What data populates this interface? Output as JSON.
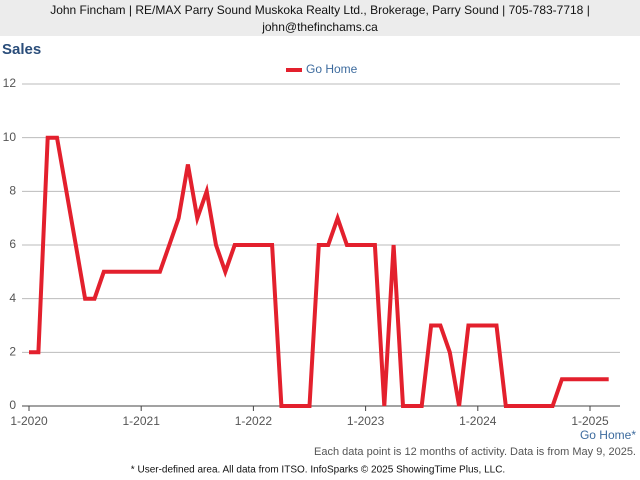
{
  "header": {
    "text": "John Fincham | RE/MAX Parry Sound Muskoka Realty Ltd., Brokerage, Parry Sound | 705-783-7718 | john@thefinchams.ca"
  },
  "chart_data": {
    "type": "line",
    "title": "Sales",
    "categories": [
      "1-2020",
      null,
      null,
      null,
      null,
      null,
      null,
      null,
      null,
      null,
      null,
      null,
      "1-2021",
      null,
      null,
      null,
      null,
      null,
      null,
      null,
      null,
      null,
      null,
      null,
      "1-2022",
      null,
      null,
      null,
      null,
      null,
      null,
      null,
      null,
      null,
      null,
      null,
      "1-2023",
      null,
      null,
      null,
      null,
      null,
      null,
      null,
      null,
      null,
      null,
      null,
      "1-2024",
      null,
      null,
      null,
      null,
      null,
      null,
      null,
      null,
      null,
      null,
      null,
      "1-2025",
      null,
      null
    ],
    "series": [
      {
        "name": "Go Home",
        "color": "#e3202d",
        "values": [
          2,
          2,
          10,
          10,
          8,
          6,
          4,
          4,
          5,
          5,
          5,
          5,
          5,
          5,
          5,
          6,
          7,
          9,
          7,
          8,
          6,
          5,
          6,
          6,
          6,
          6,
          6,
          0,
          0,
          0,
          0,
          6,
          6,
          7,
          6,
          6,
          6,
          6,
          0,
          6,
          0,
          0,
          0,
          3,
          3,
          2,
          0,
          3,
          3,
          3,
          3,
          0,
          0,
          0,
          0,
          0,
          0,
          1,
          1,
          1,
          1,
          1,
          1
        ]
      }
    ],
    "ylim": [
      0,
      12
    ],
    "yticks": [
      0,
      2,
      4,
      6,
      8,
      10,
      12
    ],
    "grid": true,
    "area_label": "Go Home*",
    "note": "Each data point is 12 months of activity. Data is from May 9, 2025.",
    "footer": "* User-defined area. All data from ITSO. InfoSparks © 2025 ShowingTime Plus, LLC."
  }
}
